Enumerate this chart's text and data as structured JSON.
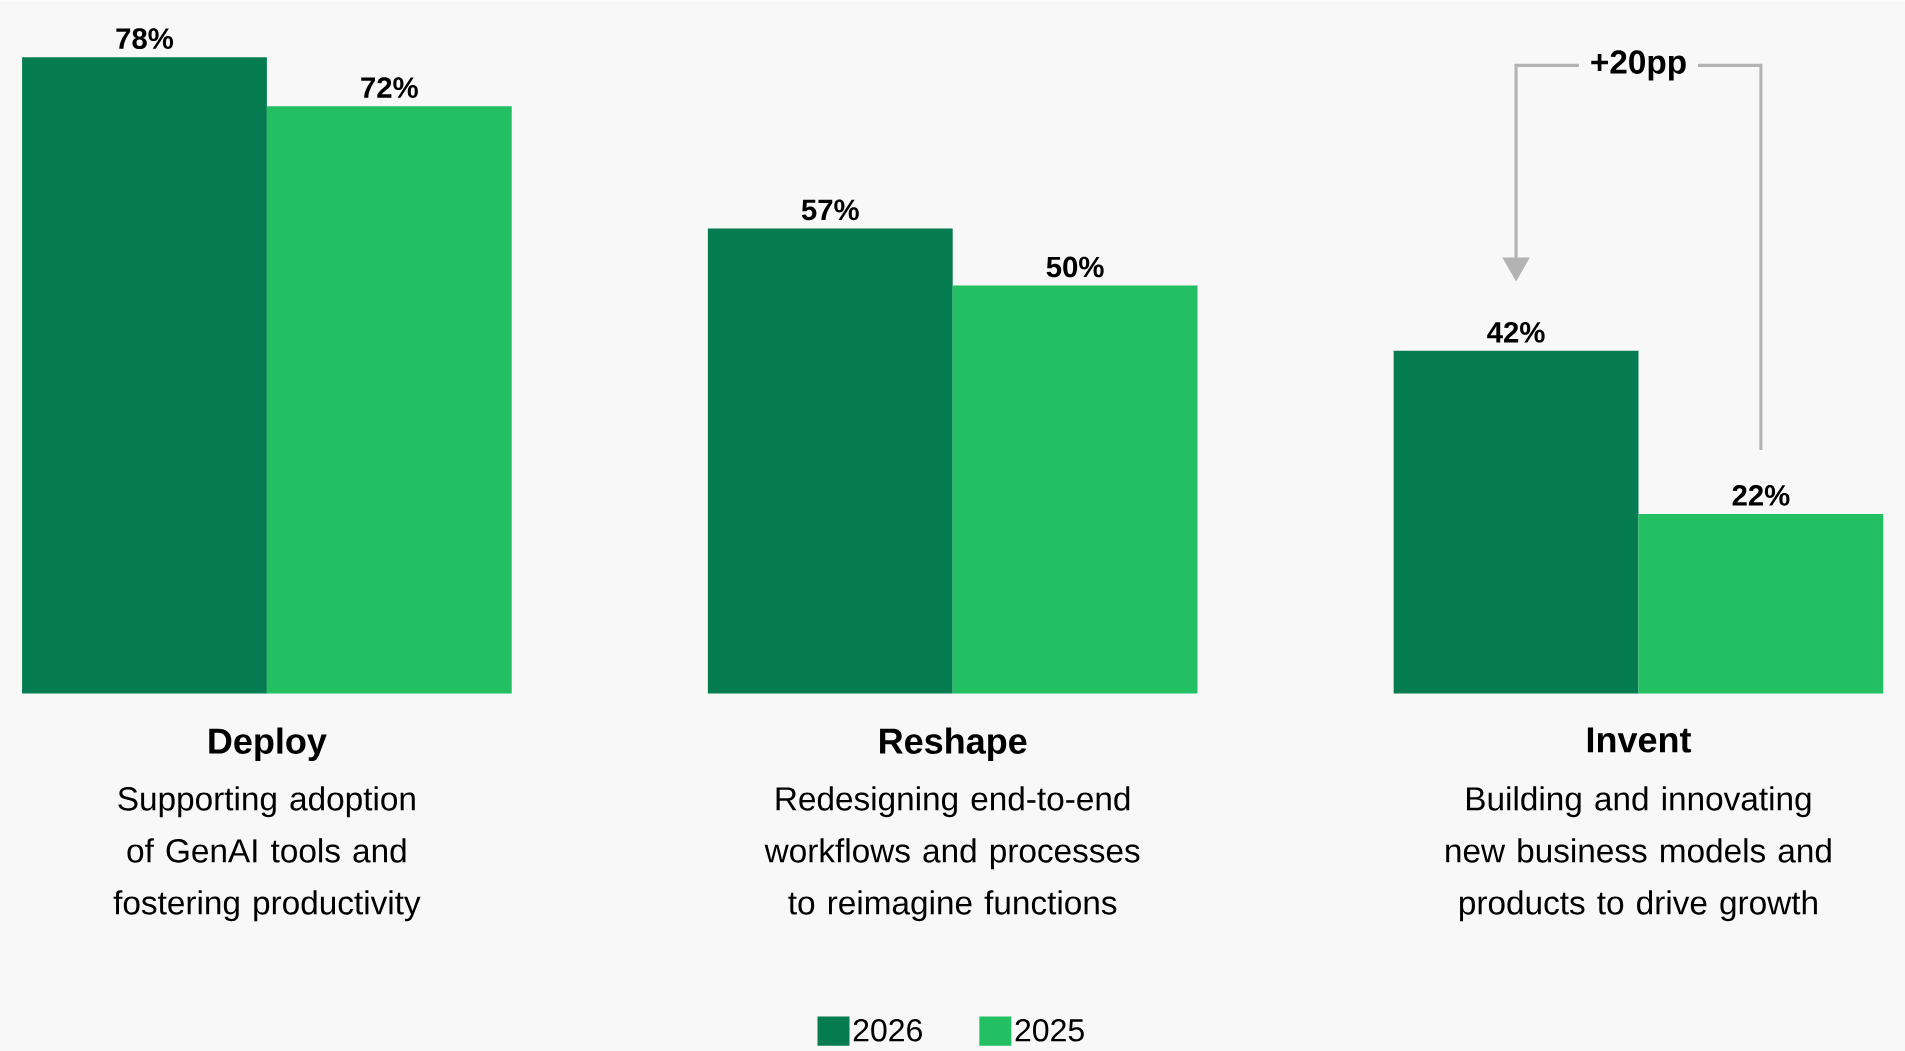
{
  "chart_data": {
    "type": "bar",
    "categories": [
      "Deploy",
      "Reshape",
      "Invent"
    ],
    "series": [
      {
        "name": "2026",
        "color": "#047b51",
        "values": [
          78,
          57,
          42
        ],
        "value_labels": [
          "78%",
          "57%",
          "42%"
        ]
      },
      {
        "name": "2025",
        "color": "#22c063",
        "values": [
          72,
          50,
          22
        ],
        "value_labels": [
          "72%",
          "50%",
          "22%"
        ]
      }
    ],
    "ylim": [
      0,
      85
    ],
    "legend": "bottom",
    "annotations": [
      "Supporting adoption of GenAI tools and fostering productivity",
      "Redesigning end-to-end workflows and processes to reimagine functions",
      "Building and innovating new business models and products to drive growth",
      "+20pp"
    ]
  }
}
